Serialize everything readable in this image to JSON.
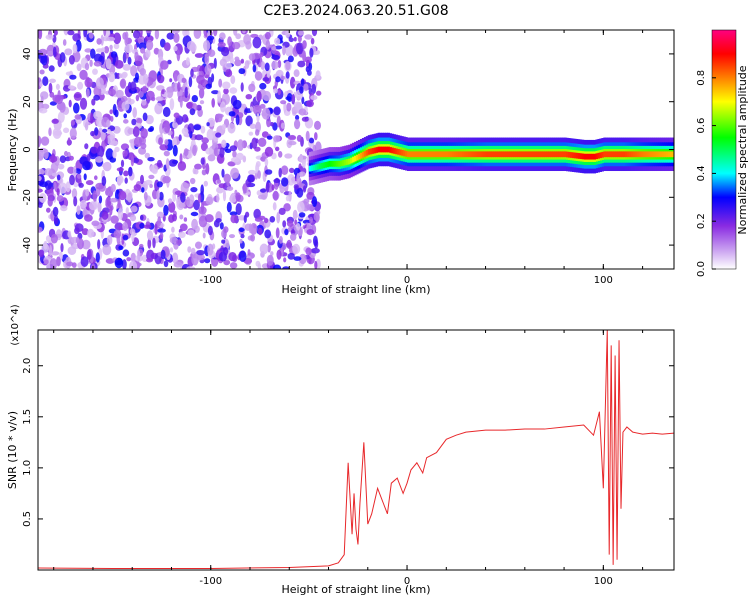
{
  "figure": {
    "title": "C2E3.2024.063.20.51.G08"
  },
  "colorbar": {
    "label": "Normalized spectral amplitude",
    "ticks": [
      "0.0",
      "0.2",
      "0.4",
      "0.6",
      "0.8"
    ],
    "tick_values": [
      0.0,
      0.2,
      0.4,
      0.6,
      0.8
    ],
    "range": [
      0,
      1
    ],
    "colors": [
      "#ffffff",
      "#8a2be2",
      "#0000ff",
      "#00ffff",
      "#00ff00",
      "#ffff00",
      "#ff8000",
      "#ff0000",
      "#ff0080"
    ]
  },
  "chart_data": [
    {
      "type": "heatmap",
      "xlabel": "Height of straight line (km)",
      "ylabel": "Frequency (Hz)",
      "xlim": [
        -188,
        136
      ],
      "ylim": [
        -50,
        50
      ],
      "xticks": [
        -100,
        0,
        100
      ],
      "xtick_labels": [
        "-100",
        "0",
        "100"
      ],
      "yticks": [
        -40,
        -20,
        0,
        20,
        40
      ],
      "ytick_labels": [
        "-40",
        "-20",
        "0",
        "20",
        "40"
      ],
      "noise_region_x": [
        -188,
        -50
      ],
      "ridge": {
        "x": [
          -50,
          -45,
          -40,
          -35,
          -30,
          -25,
          -20,
          -15,
          -10,
          -5,
          0,
          10,
          20,
          40,
          60,
          80,
          90,
          95,
          100,
          105,
          110,
          120,
          136
        ],
        "frequency": [
          -8,
          -7,
          -6,
          -6,
          -5,
          -3,
          -1,
          0,
          0,
          -1,
          -2,
          -2,
          -2,
          -2,
          -2,
          -2,
          -3,
          -3,
          -2,
          -2,
          -2,
          -2,
          -2
        ],
        "peak_amplitude": [
          0.4,
          0.5,
          0.55,
          0.6,
          0.65,
          0.75,
          0.85,
          0.9,
          0.9,
          0.85,
          0.8,
          0.8,
          0.8,
          0.85,
          0.85,
          0.85,
          0.9,
          0.9,
          0.85,
          0.85,
          0.85,
          0.8,
          0.75
        ]
      }
    },
    {
      "type": "line",
      "xlabel": "Height of straight line (km)",
      "ylabel": "SNR (10 * v/v)",
      "y_multiplier": "(x10^4)",
      "xlim": [
        -188,
        136
      ],
      "ylim": [
        0,
        23500
      ],
      "xticks": [
        -100,
        0,
        100
      ],
      "xtick_labels": [
        "-100",
        "0",
        "100"
      ],
      "yticks": [
        5000,
        10000,
        15000,
        20000
      ],
      "ytick_labels": [
        "0.5",
        "1.0",
        "1.5",
        "2.0"
      ],
      "series": [
        {
          "color": "#e8282b",
          "x": [
            -188,
            -150,
            -100,
            -60,
            -40,
            -35,
            -32,
            -30,
            -28,
            -27,
            -26,
            -25,
            -24,
            -22,
            -20,
            -18,
            -15,
            -12,
            -10,
            -8,
            -5,
            -2,
            0,
            2,
            5,
            8,
            10,
            15,
            20,
            25,
            30,
            40,
            50,
            60,
            70,
            80,
            90,
            95,
            98,
            100,
            102,
            103,
            104,
            105,
            106,
            107,
            108,
            109,
            110,
            112,
            115,
            120,
            125,
            130,
            136
          ],
          "y": [
            200,
            150,
            150,
            250,
            400,
            700,
            1500,
            10500,
            3500,
            7500,
            4000,
            2500,
            6500,
            12500,
            4500,
            5500,
            8000,
            6500,
            5500,
            8500,
            9000,
            7500,
            8500,
            9800,
            10500,
            9500,
            11000,
            11500,
            12800,
            13200,
            13500,
            13700,
            13700,
            13800,
            13800,
            14000,
            14200,
            13200,
            15500,
            8000,
            23500,
            1500,
            22000,
            500,
            21000,
            1000,
            22500,
            6000,
            13500,
            14000,
            13500,
            13300,
            13400,
            13300,
            13400
          ]
        }
      ]
    }
  ]
}
